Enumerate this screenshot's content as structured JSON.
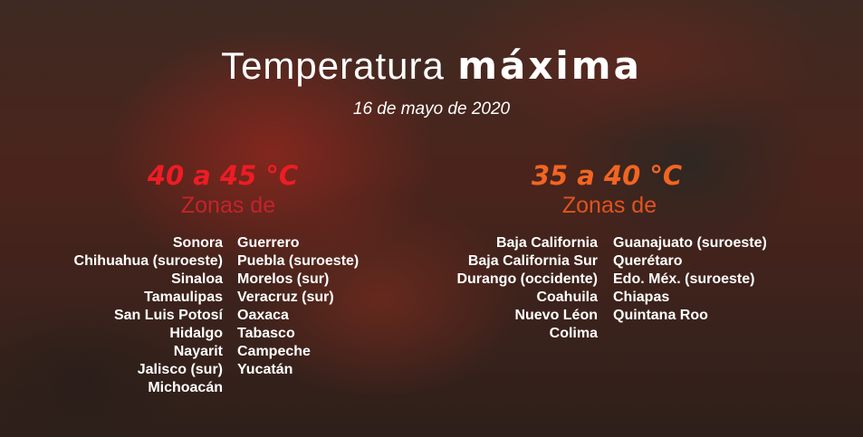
{
  "title": {
    "light": "Temperatura",
    "bold": "máxima"
  },
  "date": "16 de mayo de 2020",
  "colors": {
    "hot": "#ee1c25",
    "warm": "#f26522"
  },
  "group_hot": {
    "range": "40 a 45 °C",
    "label": "Zonas de",
    "col1": [
      "Sonora",
      "Chihuahua (suroeste)",
      "Sinaloa",
      "Tamaulipas",
      "San Luis Potosí",
      "Hidalgo",
      "Nayarit",
      "Jalisco (sur)",
      "Michoacán"
    ],
    "col2": [
      "Guerrero",
      "Puebla (suroeste)",
      "Morelos (sur)",
      "Veracruz (sur)",
      "Oaxaca",
      "Tabasco",
      "Campeche",
      "Yucatán"
    ]
  },
  "group_warm": {
    "range": "35 a 40 °C",
    "label": "Zonas de",
    "col1": [
      "Baja California",
      "Baja California Sur",
      "Durango (occidente)",
      "Coahuila",
      "Nuevo Léon",
      "Colima"
    ],
    "col2": [
      "Guanajuato (suroeste)",
      "Querétaro",
      "Edo. Méx. (suroeste)",
      "Chiapas",
      "Quintana Roo"
    ]
  }
}
